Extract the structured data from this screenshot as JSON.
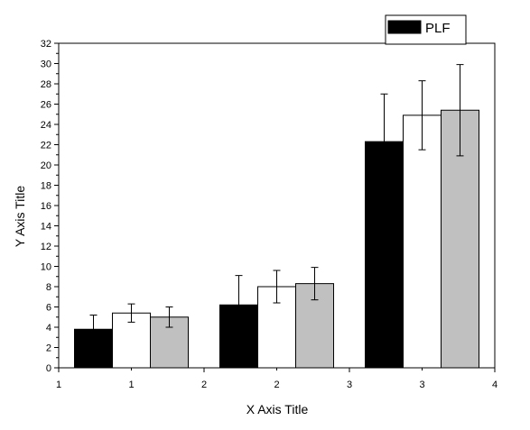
{
  "chart_data": {
    "type": "bar",
    "xlabel": "X Axis Title",
    "ylabel": "Y Axis Title",
    "ylim": [
      0,
      32
    ],
    "xlim": [
      1,
      4
    ],
    "y_ticks": [
      "0",
      "2",
      "4",
      "6",
      "8",
      "10",
      "12",
      "14",
      "16",
      "18",
      "20",
      "22",
      "24",
      "26",
      "28",
      "30",
      "32"
    ],
    "x_tick_labels": [
      "1",
      "1",
      "2",
      "2",
      "3",
      "3",
      "4"
    ],
    "grid": false,
    "legend_position": "top-right",
    "groups": [
      {
        "bars": [
          {
            "value": 3.8,
            "error": 1.4,
            "color": "#000000"
          },
          {
            "value": 5.4,
            "error": 0.9,
            "color": "#ffffff"
          },
          {
            "value": 5.0,
            "error": 1.0,
            "color": "#c0c0c0"
          }
        ]
      },
      {
        "bars": [
          {
            "value": 6.2,
            "error": 2.9,
            "color": "#000000"
          },
          {
            "value": 8.0,
            "error": 1.6,
            "color": "#ffffff"
          },
          {
            "value": 8.3,
            "error": 1.6,
            "color": "#c0c0c0"
          }
        ]
      },
      {
        "bars": [
          {
            "value": 22.3,
            "error": 4.7,
            "color": "#000000"
          },
          {
            "value": 24.9,
            "error": 3.4,
            "color": "#ffffff"
          },
          {
            "value": 25.4,
            "error": 4.5,
            "color": "#c0c0c0"
          }
        ]
      }
    ],
    "legend": {
      "label": "PLF",
      "color": "#000000"
    }
  }
}
